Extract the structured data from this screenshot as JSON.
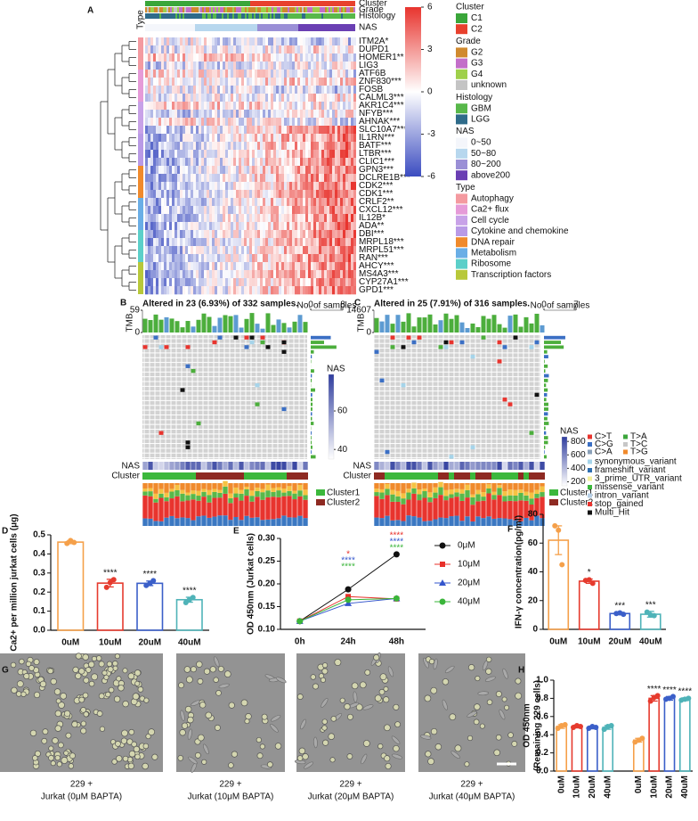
{
  "chart_data": [
    {
      "type": "heatmap",
      "panel": "A",
      "tracks": [
        "Cluster",
        "Grade",
        "Histology",
        "NAS"
      ],
      "type_track_label": "Type",
      "genes": [
        "ITM2A*",
        "DUPD1",
        "HOMER1**",
        "LIG3",
        "ATF6B",
        "ZNF830***",
        "FOSB",
        "CALML3***",
        "AKR1C4***",
        "NFYB***",
        "AHNAK***",
        "SLC10A7***",
        "IL1RN***",
        "BATF***",
        "LTBR***",
        "CLIC1***",
        "GPN3***",
        "DCLRE1B***",
        "CDK2***",
        "CDK1***",
        "CRLF2**",
        "CXCL12***",
        "IL12B*",
        "ADA**",
        "DBI***",
        "MRPL18***",
        "MRPL51***",
        "RAN***",
        "AHCY***",
        "MS4A3***",
        "CYP27A1***",
        "GPD1***"
      ],
      "colorbar": {
        "lim": [
          -6,
          6
        ],
        "ticks": [
          6,
          3,
          0,
          -3,
          -6
        ],
        "colors": [
          "#e8342e",
          "#ffffff",
          "#3b4cc0"
        ]
      },
      "legend": [
        {
          "title": "Cluster",
          "items": [
            {
              "label": "C1",
              "color": "#3aa63a"
            },
            {
              "label": "C2",
              "color": "#e8412e"
            }
          ]
        },
        {
          "title": "Grade",
          "items": [
            {
              "label": "G2",
              "color": "#d08a2e"
            },
            {
              "label": "G3",
              "color": "#c36fc9"
            },
            {
              "label": "G4",
              "color": "#9fd04a"
            },
            {
              "label": "unknown",
              "color": "#c4c4c4"
            }
          ]
        },
        {
          "title": "Histology",
          "items": [
            {
              "label": "GBM",
              "color": "#58b84a"
            },
            {
              "label": "LGG",
              "color": "#2f6b8a"
            }
          ]
        },
        {
          "title": "NAS",
          "items": [
            {
              "label": "0~50",
              "color": "#f4f6fb"
            },
            {
              "label": "50~80",
              "color": "#b7d7ee"
            },
            {
              "label": "80~200",
              "color": "#9a8fd6"
            },
            {
              "label": "above200",
              "color": "#6a3fb3"
            }
          ]
        },
        {
          "title": "Type",
          "items": [
            {
              "label": "Autophagy",
              "color": "#f49aa0"
            },
            {
              "label": "Ca2+ flux",
              "color": "#e69bd8"
            },
            {
              "label": "Cell cycle",
              "color": "#c8a2e8"
            },
            {
              "label": "Cytokine and chemokine",
              "color": "#b99ae6"
            },
            {
              "label": "DNA repair",
              "color": "#f08a2c"
            },
            {
              "label": "Metabolism",
              "color": "#6aaee6"
            },
            {
              "label": "Ribosome",
              "color": "#5ccfc9"
            },
            {
              "label": "Transcription factors",
              "color": "#b8c83a"
            }
          ]
        }
      ]
    },
    {
      "type": "oncoprint",
      "panel": "B",
      "title": "Altered in 23 (6.93%) of 332 samples.",
      "tmb_label": "TMB",
      "tmb_lim": [
        0,
        59
      ],
      "tmb_ticks": [
        59,
        0
      ],
      "samples_label": "No. of samples",
      "samples_lim": [
        0,
        8
      ],
      "samples_ticks": [
        0,
        8
      ],
      "nas_label": "NAS",
      "nas_lim": [
        35,
        79
      ],
      "nas_ticks": [
        60,
        40
      ],
      "nas_colors": [
        "#ffffff",
        "#2f3d9e"
      ],
      "row_labels": [
        "NAS",
        "Cluster"
      ],
      "cluster_legend": [
        {
          "label": "Cluster1",
          "color": "#3cb83c"
        },
        {
          "label": "Cluster2",
          "color": "#8e2a22"
        }
      ]
    },
    {
      "type": "oncoprint",
      "panel": "C",
      "title": "Altered in 25 (7.91%) of 316 samples.",
      "tmb_label": "TMB",
      "tmb_lim": [
        0,
        14607
      ],
      "tmb_ticks": [
        14607,
        0
      ],
      "samples_label": "No. of samples",
      "samples_lim": [
        0,
        7
      ],
      "samples_ticks": [
        0,
        7
      ],
      "nas_label": "NAS",
      "nas_lim": [
        140,
        869
      ],
      "nas_ticks": [
        800,
        600,
        400,
        200
      ],
      "nas_colors": [
        "#ffffff",
        "#2f3d9e"
      ],
      "row_labels": [
        "NAS",
        "Cluster"
      ],
      "cluster_legend": [
        {
          "label": "Cluster1",
          "color": "#3cb83c"
        },
        {
          "label": "Cluster2",
          "color": "#8e2a22"
        }
      ],
      "mutation_legend": [
        {
          "label": "C>T",
          "color": "#e8342e"
        },
        {
          "label": "T>A",
          "color": "#3ca63c"
        },
        {
          "label": "C>G",
          "color": "#3b6fc4"
        },
        {
          "label": "T>C",
          "color": "#c7c7c7"
        },
        {
          "label": "C>A",
          "color": "#8aa0b8"
        },
        {
          "label": "T>G",
          "color": "#f08a2c"
        },
        {
          "label": "synonymous_variant",
          "color": "#a6d4ea"
        },
        {
          "label": "frameshift_variant",
          "color": "#2f6fb0"
        },
        {
          "label": "3_prime_UTR_variant",
          "color": "#f3ef9a"
        },
        {
          "label": "missense_variant",
          "color": "#3cb83c"
        },
        {
          "label": "intron_variant",
          "color": "#b6cfe6"
        },
        {
          "label": "stop_gained",
          "color": "#e8342e"
        },
        {
          "label": "Multi_Hit",
          "color": "#111111"
        }
      ]
    },
    {
      "type": "bar",
      "panel": "D",
      "ylabel": [
        "Ca2+ per million jurkat cells (μg)"
      ],
      "categories": [
        "0uM",
        "10uM",
        "20uM",
        "40uM"
      ],
      "values": [
        0.462,
        0.247,
        0.246,
        0.16
      ],
      "errors": [
        0.008,
        0.02,
        0.012,
        0.013
      ],
      "points": [
        [
          0.455,
          0.47,
          0.46
        ],
        [
          0.225,
          0.25,
          0.265
        ],
        [
          0.235,
          0.245,
          0.26
        ],
        [
          0.145,
          0.16,
          0.172
        ]
      ],
      "sig": [
        null,
        "****",
        "****",
        "****"
      ],
      "colors": [
        "#f5a04a",
        "#e63b2e",
        "#3b5fc9",
        "#4fb3b8"
      ],
      "ylim": [
        0,
        0.5
      ],
      "yticks": [
        {
          "value": 0,
          "label": "0.0"
        },
        {
          "value": 0.1,
          "label": "0.1"
        },
        {
          "value": 0.2,
          "label": "0.2"
        },
        {
          "value": 0.3,
          "label": "0.3"
        },
        {
          "value": 0.4,
          "label": "0.4"
        },
        {
          "value": 0.5,
          "label": "0.5"
        }
      ]
    },
    {
      "type": "line",
      "panel": "E",
      "ylabel": "OD 450nm (Jurkat cells)",
      "categories": [
        "0h",
        "24h",
        "48h"
      ],
      "ylim": [
        0.1,
        0.3
      ],
      "yticks": [
        {
          "value": 0.1,
          "label": "0.10"
        },
        {
          "value": 0.15,
          "label": "0.15"
        },
        {
          "value": 0.2,
          "label": "0.20"
        },
        {
          "value": 0.25,
          "label": "0.25"
        },
        {
          "value": 0.3,
          "label": "0.30"
        }
      ],
      "series": [
        {
          "name": "0μM",
          "color": "#111111",
          "marker": "circle",
          "values": [
            0.118,
            0.188,
            0.265
          ],
          "sig": [
            null,
            null,
            null
          ]
        },
        {
          "name": "10μM",
          "color": "#e8302a",
          "marker": "square",
          "values": [
            0.118,
            0.172,
            0.167
          ],
          "sig": [
            null,
            "*",
            "****"
          ]
        },
        {
          "name": "20μM",
          "color": "#3355cc",
          "marker": "triangle",
          "values": [
            0.118,
            0.157,
            0.168
          ],
          "sig": [
            null,
            "****",
            "****"
          ]
        },
        {
          "name": "40μM",
          "color": "#3ab53a",
          "marker": "circle",
          "values": [
            0.118,
            0.165,
            0.168
          ],
          "sig": [
            null,
            "****",
            "****"
          ]
        }
      ]
    },
    {
      "type": "bar",
      "panel": "F",
      "ylabel": [
        "IFN-γ concentration(pg/ml)"
      ],
      "categories": [
        "0uM",
        "10uM",
        "20uM",
        "40uM"
      ],
      "values": [
        62,
        33.5,
        11,
        10.5
      ],
      "errors": [
        10,
        1.5,
        0.8,
        2
      ],
      "points": [
        [
          72,
          69,
          45
        ],
        [
          34,
          34.5,
          32
        ],
        [
          11,
          11.5,
          10.5
        ],
        [
          12,
          10,
          9.5
        ]
      ],
      "sig": [
        null,
        "*",
        "***",
        "***"
      ],
      "colors": [
        "#f5a04a",
        "#e63b2e",
        "#3b5fc9",
        "#4fb3b8"
      ],
      "ylim": [
        0,
        80
      ],
      "yticks": [
        0,
        20,
        40,
        60,
        80
      ]
    },
    {
      "type": "images",
      "panel": "G",
      "captions": [
        [
          "229 +",
          "Jurkat (0μM BAPTA)"
        ],
        [
          "229 +",
          "Jurkat (10μM BAPTA)"
        ],
        [
          "229 +",
          "Jurkat (20μM BAPTA)"
        ],
        [
          "229 +",
          "Jurkat (40μM BAPTA)"
        ]
      ]
    },
    {
      "type": "bar",
      "panel": "H",
      "ylabel": [
        "OD 450nm",
        "(Remaining 229 cells)"
      ],
      "categories": [
        "0uM",
        "10uM",
        "20uM",
        "40uM",
        "0uM",
        "10uM",
        "20uM",
        "40uM"
      ],
      "values": [
        0.49,
        0.49,
        0.48,
        0.48,
        0.34,
        0.8,
        0.8,
        0.79
      ],
      "errors": [
        0.02,
        0.015,
        0.015,
        0.02,
        0.02,
        0.03,
        0.02,
        0.015
      ],
      "points": [
        [
          0.47,
          0.5,
          0.51
        ],
        [
          0.48,
          0.5,
          0.49
        ],
        [
          0.47,
          0.49,
          0.48
        ],
        [
          0.46,
          0.49,
          0.5
        ],
        [
          0.32,
          0.34,
          0.36
        ],
        [
          0.77,
          0.81,
          0.83
        ],
        [
          0.79,
          0.8,
          0.82
        ],
        [
          0.78,
          0.79,
          0.8
        ]
      ],
      "sig": [
        null,
        null,
        null,
        null,
        null,
        "****",
        "****",
        "****"
      ],
      "colors": [
        "#f5a04a",
        "#e63b2e",
        "#3b5fc9",
        "#4fb3b8",
        "#f5a04a",
        "#e63b2e",
        "#3b5fc9",
        "#4fb3b8"
      ],
      "ylim": [
        0,
        1
      ],
      "yticks": [
        {
          "value": 0,
          "label": "0.0"
        },
        {
          "value": 0.2,
          "label": "0.2"
        },
        {
          "value": 0.4,
          "label": "0.4"
        },
        {
          "value": 0.6,
          "label": "0.6"
        },
        {
          "value": 0.8,
          "label": "0.8"
        },
        {
          "value": 1,
          "label": "1.0"
        }
      ]
    }
  ]
}
